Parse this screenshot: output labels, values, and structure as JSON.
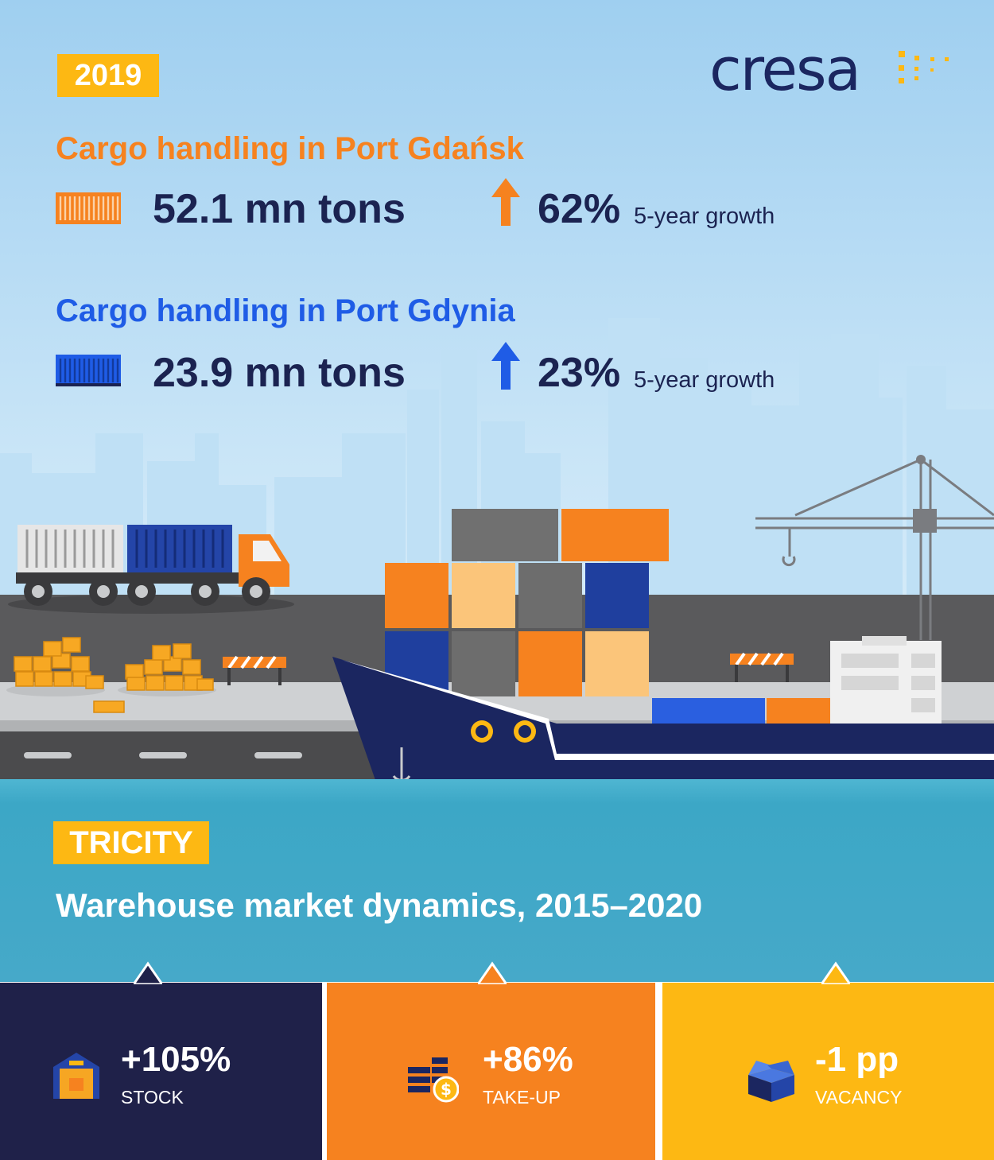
{
  "header": {
    "year": "2019",
    "logo_text": "cresa"
  },
  "ports": [
    {
      "title": "Cargo handling in Port Gdańsk",
      "tons": "52.1 mn tons",
      "growth_pct": "62%",
      "growth_label": "5-year growth",
      "color": "#f6821f"
    },
    {
      "title": "Cargo handling in Port Gdynia",
      "tons": "23.9 mn tons",
      "growth_pct": "23%",
      "growth_label": "5-year growth",
      "color": "#1f5ce6"
    }
  ],
  "market": {
    "region": "TRICITY",
    "title": "Warehouse market dynamics, 2015–2020",
    "stats": [
      {
        "value": "+105%",
        "label": "STOCK",
        "icon": "warehouse-icon",
        "color": "#1f2149"
      },
      {
        "value": "+86%",
        "label": "TAKE-UP",
        "icon": "coins-dollar-icon",
        "color": "#f6821f"
      },
      {
        "value": "-1 pp",
        "label": "VACANCY",
        "icon": "open-box-icon",
        "color": "#fdb813"
      }
    ]
  }
}
